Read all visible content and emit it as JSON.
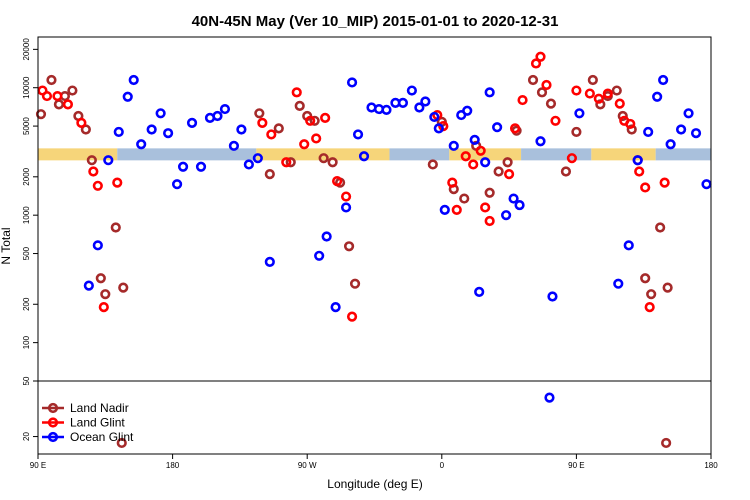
{
  "chart_data": {
    "type": "scatter",
    "title": "40N-45N May (Ver 10_MIP)   2015-01-01 to 2020-12-31",
    "xlabel": "Longitude (deg E)",
    "ylabel": "N Total",
    "xlim": [
      90,
      540
    ],
    "ylim_main": [
      50,
      25000
    ],
    "ylim_low": [
      15,
      50
    ],
    "yscale": "log",
    "x_ticks": [
      {
        "value": 90,
        "label": "90 E"
      },
      {
        "value": 180,
        "label": "180"
      },
      {
        "value": 270,
        "label": "90 W"
      },
      {
        "value": 360,
        "label": "0"
      },
      {
        "value": 450,
        "label": "90 E"
      },
      {
        "value": 540,
        "label": "180"
      }
    ],
    "y_ticks_main": [
      {
        "value": 100,
        "label": "100"
      },
      {
        "value": 200,
        "label": "200"
      },
      {
        "value": 500,
        "label": "500"
      },
      {
        "value": 1000,
        "label": "1000"
      },
      {
        "value": 2000,
        "label": "2000"
      },
      {
        "value": 5000,
        "label": "5000"
      },
      {
        "value": 10000,
        "label": "10000"
      },
      {
        "value": 20000,
        "label": "20000"
      }
    ],
    "y_ticks_low": [
      {
        "value": 20,
        "label": "20"
      },
      {
        "value": 50,
        "label": "50"
      }
    ],
    "band": {
      "y_center": 3000,
      "segments": [
        {
          "x0": 90,
          "x1": 143,
          "color": "#f6d57a"
        },
        {
          "x0": 143,
          "x1": 236,
          "color": "#a9c0dc"
        },
        {
          "x0": 236,
          "x1": 325,
          "color": "#f6d57a"
        },
        {
          "x0": 325,
          "x1": 365,
          "color": "#a9c0dc"
        },
        {
          "x0": 365,
          "x1": 413,
          "color": "#f6d57a"
        },
        {
          "x0": 413,
          "x1": 460,
          "color": "#a9c0dc"
        },
        {
          "x0": 460,
          "x1": 503,
          "color": "#f6d57a"
        },
        {
          "x0": 503,
          "x1": 540,
          "color": "#a9c0dc"
        }
      ]
    },
    "series": [
      {
        "name": "Land Nadir",
        "color": "#a52a2a",
        "points": [
          [
            92,
            6200
          ],
          [
            99,
            11500
          ],
          [
            104,
            7400
          ],
          [
            108,
            8600
          ],
          [
            113,
            9500
          ],
          [
            117,
            6000
          ],
          [
            122,
            4700
          ],
          [
            126,
            2700
          ],
          [
            132,
            320
          ],
          [
            135,
            240
          ],
          [
            142,
            800
          ],
          [
            147,
            270
          ],
          [
            238,
            6300
          ],
          [
            245,
            2100
          ],
          [
            251,
            4800
          ],
          [
            259,
            2600
          ],
          [
            265,
            7200
          ],
          [
            270,
            6000
          ],
          [
            275,
            5500
          ],
          [
            281,
            2800
          ],
          [
            287,
            2600
          ],
          [
            292,
            1800
          ],
          [
            298,
            570
          ],
          [
            302,
            290
          ],
          [
            354,
            2500
          ],
          [
            360,
            5400
          ],
          [
            368,
            1600
          ],
          [
            375,
            1350
          ],
          [
            383,
            3500
          ],
          [
            392,
            1500
          ],
          [
            398,
            2200
          ],
          [
            404,
            2600
          ],
          [
            410,
            4600
          ],
          [
            421,
            11500
          ],
          [
            427,
            9200
          ],
          [
            433,
            7500
          ],
          [
            443,
            2200
          ],
          [
            450,
            4500
          ],
          [
            461,
            11500
          ],
          [
            466,
            7400
          ],
          [
            471,
            8600
          ],
          [
            477,
            9500
          ],
          [
            481,
            6000
          ],
          [
            487,
            4700
          ],
          [
            491,
            2700
          ],
          [
            496,
            320
          ],
          [
            500,
            240
          ],
          [
            506,
            800
          ],
          [
            511,
            270
          ]
        ],
        "low_points": [
          [
            146,
            18
          ],
          [
            510,
            18
          ]
        ]
      },
      {
        "name": "Land Glint",
        "color": "#ff0000",
        "points": [
          [
            93,
            9500
          ],
          [
            96,
            8600
          ],
          [
            103,
            8600
          ],
          [
            110,
            7400
          ],
          [
            119,
            5300
          ],
          [
            127,
            2200
          ],
          [
            130,
            1700
          ],
          [
            134,
            190
          ],
          [
            143,
            1800
          ],
          [
            240,
            5300
          ],
          [
            246,
            4300
          ],
          [
            256,
            2600
          ],
          [
            263,
            9200
          ],
          [
            268,
            3600
          ],
          [
            272,
            5500
          ],
          [
            276,
            4000
          ],
          [
            282,
            5800
          ],
          [
            290,
            1850
          ],
          [
            296,
            1400
          ],
          [
            300,
            160
          ],
          [
            357,
            6100
          ],
          [
            361,
            5000
          ],
          [
            367,
            1800
          ],
          [
            370,
            1100
          ],
          [
            376,
            2900
          ],
          [
            381,
            2500
          ],
          [
            386,
            3200
          ],
          [
            389,
            1150
          ],
          [
            392,
            900
          ],
          [
            405,
            2100
          ],
          [
            409,
            4800
          ],
          [
            414,
            8000
          ],
          [
            423,
            15500
          ],
          [
            426,
            17500
          ],
          [
            430,
            10500
          ],
          [
            436,
            5500
          ],
          [
            447,
            2800
          ],
          [
            450,
            9500
          ],
          [
            459,
            9000
          ],
          [
            465,
            8200
          ],
          [
            471,
            9000
          ],
          [
            479,
            7500
          ],
          [
            482,
            5500
          ],
          [
            486,
            5200
          ],
          [
            492,
            2200
          ],
          [
            496,
            1650
          ],
          [
            499,
            190
          ],
          [
            509,
            1800
          ]
        ],
        "low_points": []
      },
      {
        "name": "Ocean Glint",
        "color": "#0000ff",
        "points": [
          [
            124,
            280
          ],
          [
            130,
            580
          ],
          [
            137,
            2700
          ],
          [
            144,
            4500
          ],
          [
            150,
            8500
          ],
          [
            154,
            11500
          ],
          [
            159,
            3600
          ],
          [
            166,
            4700
          ],
          [
            172,
            6300
          ],
          [
            177,
            4400
          ],
          [
            183,
            1750
          ],
          [
            187,
            2400
          ],
          [
            193,
            5300
          ],
          [
            199,
            2400
          ],
          [
            205,
            5800
          ],
          [
            210,
            6000
          ],
          [
            215,
            6800
          ],
          [
            221,
            3500
          ],
          [
            226,
            4700
          ],
          [
            231,
            2500
          ],
          [
            237,
            2800
          ],
          [
            245,
            430
          ],
          [
            278,
            480
          ],
          [
            283,
            680
          ],
          [
            289,
            190
          ],
          [
            296,
            1150
          ],
          [
            300,
            11000
          ],
          [
            304,
            4300
          ],
          [
            308,
            2900
          ],
          [
            313,
            7000
          ],
          [
            318,
            6800
          ],
          [
            323,
            6700
          ],
          [
            329,
            7600
          ],
          [
            334,
            7600
          ],
          [
            340,
            9500
          ],
          [
            345,
            7000
          ],
          [
            349,
            7800
          ],
          [
            355,
            5900
          ],
          [
            358,
            4800
          ],
          [
            362,
            1100
          ],
          [
            368,
            3500
          ],
          [
            373,
            6100
          ],
          [
            377,
            6600
          ],
          [
            382,
            3900
          ],
          [
            385,
            250
          ],
          [
            389,
            2600
          ],
          [
            392,
            9200
          ],
          [
            397,
            4900
          ],
          [
            403,
            1000
          ],
          [
            408,
            1350
          ],
          [
            412,
            1200
          ],
          [
            426,
            3800
          ],
          [
            434,
            230
          ],
          [
            452,
            6300
          ],
          [
            478,
            290
          ],
          [
            485,
            580
          ],
          [
            491,
            2700
          ],
          [
            498,
            4500
          ],
          [
            504,
            8500
          ],
          [
            508,
            11500
          ],
          [
            513,
            3600
          ],
          [
            520,
            4700
          ],
          [
            525,
            6300
          ],
          [
            530,
            4400
          ],
          [
            537,
            1750
          ]
        ],
        "low_points": [
          [
            432,
            38
          ]
        ]
      }
    ],
    "legend_position": "bottom-left"
  }
}
